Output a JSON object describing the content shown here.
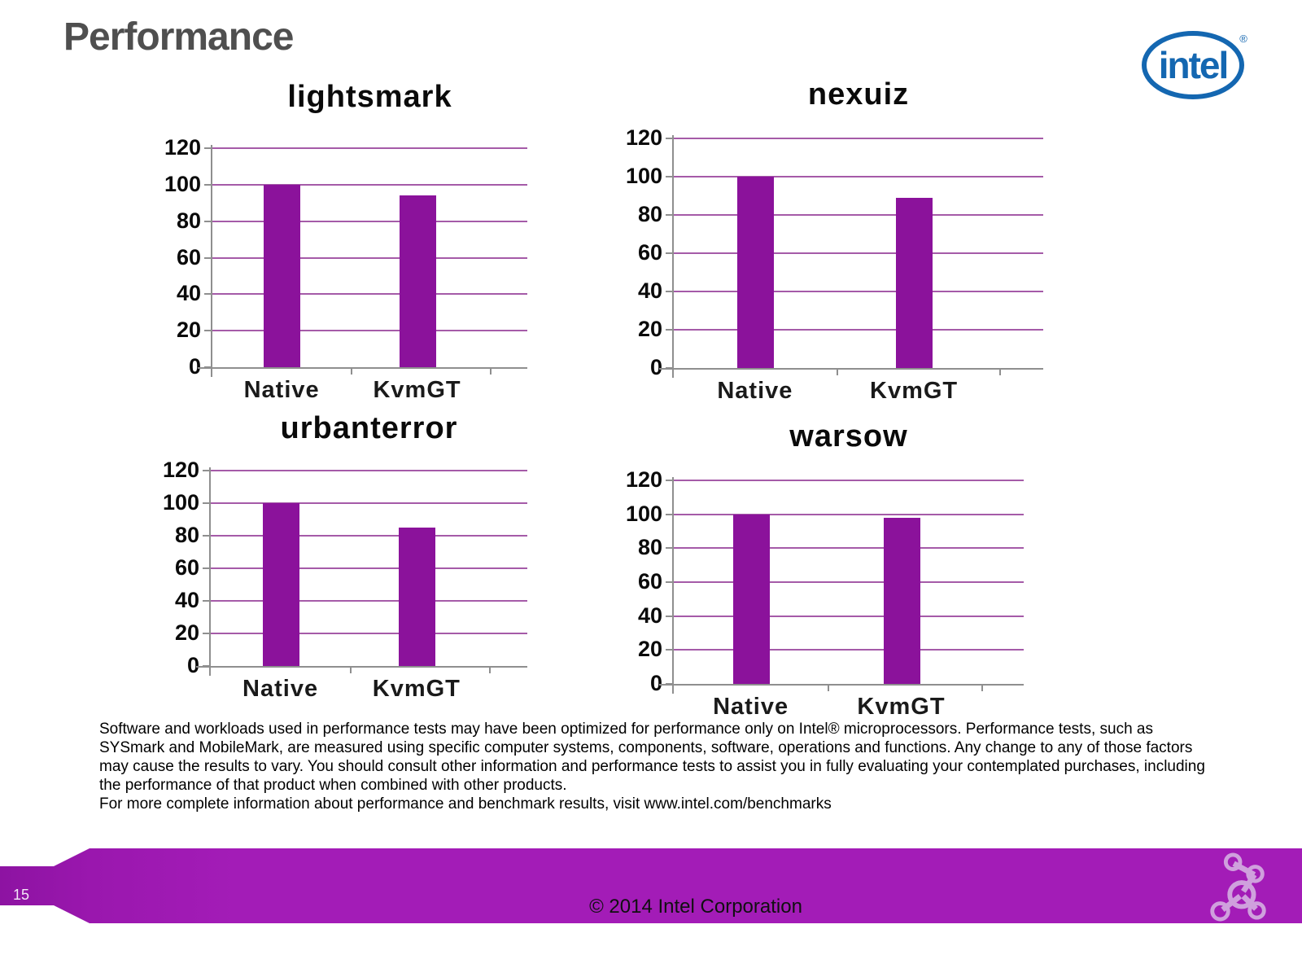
{
  "page": {
    "title": "Performance",
    "page_number": "15",
    "copyright": "© 2014 Intel Corporation",
    "disclaimer_p1": "Software and workloads used in performance tests may have been optimized for performance only on Intel® microprocessors.  Performance tests, such as SYSmark and MobileMark, are measured using specific computer systems, components, software, operations and functions.  Any change to any of those factors may cause the results to vary.  You should consult other information and performance tests to assist you in fully evaluating your contemplated purchases, including the performance of that product when combined with other products.",
    "disclaimer_p2": "For more complete information about performance and benchmark results, visit www.intel.com/benchmarks"
  },
  "logo": {
    "text": "intel",
    "registered": "®"
  },
  "colors": {
    "bar": "#8b129b",
    "gridline": "#a55ba8",
    "axis": "#8f8f8f",
    "footer_purple": "#a31cb7",
    "logo_blue": "#1467b1",
    "molecule_icon": "#cfa0dd",
    "heading_gray": "#4f4f4f"
  },
  "chart_data": [
    {
      "type": "bar",
      "title": "lightsmark",
      "categories": [
        "Native",
        "KvmGT"
      ],
      "values": [
        100,
        94
      ],
      "ylim": [
        0,
        120
      ],
      "ytick_step": 20,
      "grid": true,
      "legend": "none"
    },
    {
      "type": "bar",
      "title": "nexuiz",
      "categories": [
        "Native",
        "KvmGT"
      ],
      "values": [
        100,
        89
      ],
      "ylim": [
        0,
        120
      ],
      "ytick_step": 20,
      "grid": true,
      "legend": "none"
    },
    {
      "type": "bar",
      "title": "urbanterror",
      "categories": [
        "Native",
        "KvmGT"
      ],
      "values": [
        100,
        85
      ],
      "ylim": [
        0,
        120
      ],
      "ytick_step": 20,
      "grid": true,
      "legend": "none"
    },
    {
      "type": "bar",
      "title": "warsow",
      "categories": [
        "Native",
        "KvmGT"
      ],
      "values": [
        100,
        98
      ],
      "ylim": [
        0,
        120
      ],
      "ytick_step": 20,
      "grid": true,
      "legend": "none"
    }
  ]
}
